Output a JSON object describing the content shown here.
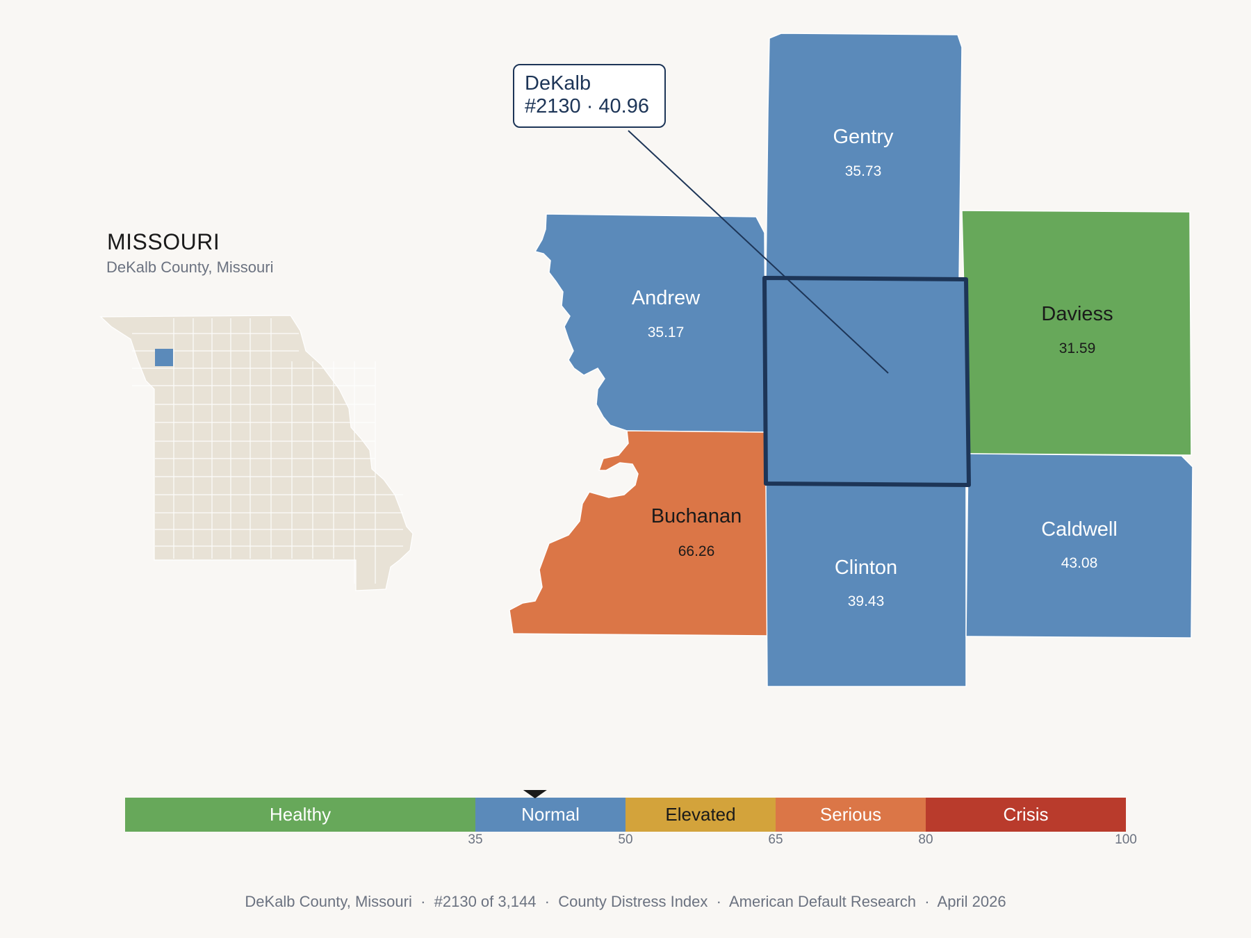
{
  "state": {
    "title": "MISSOURI",
    "subtitle": "DeKalb County, Missouri",
    "fill": "#e8e2d6",
    "highlight": "#5b8aba"
  },
  "callout": {
    "line1": "DeKalb",
    "line2": "#2130 · 40.96"
  },
  "colors": {
    "healthy": "#67a85a",
    "normal": "#5b8aba",
    "elevated": "#d3a33b",
    "serious": "#db7647",
    "crisis": "#b93b2c",
    "outline": "#1d3557"
  },
  "counties": [
    {
      "name": "DeKalb",
      "value": 40.96,
      "category": "normal",
      "selected": true
    },
    {
      "name": "Gentry",
      "value": "35.73",
      "category": "normal"
    },
    {
      "name": "Andrew",
      "value": "35.17",
      "category": "normal"
    },
    {
      "name": "Daviess",
      "value": "31.59",
      "category": "healthy"
    },
    {
      "name": "Buchanan",
      "value": "66.26",
      "category": "serious"
    },
    {
      "name": "Clinton",
      "value": "39.43",
      "category": "normal"
    },
    {
      "name": "Caldwell",
      "value": "43.08",
      "category": "normal"
    }
  ],
  "legend": {
    "bands": [
      {
        "label": "Healthy",
        "min": 0,
        "max": 35,
        "color": "#67a85a"
      },
      {
        "label": "Normal",
        "min": 35,
        "max": 50,
        "color": "#5b8aba"
      },
      {
        "label": "Elevated",
        "min": 50,
        "max": 65,
        "color": "#d3a33b"
      },
      {
        "label": "Serious",
        "min": 65,
        "max": 80,
        "color": "#db7647"
      },
      {
        "label": "Crisis",
        "min": 80,
        "max": 100,
        "color": "#b93b2c"
      }
    ],
    "ticks": [
      "35",
      "50",
      "65",
      "80",
      "100"
    ],
    "marker_value": 40.96
  },
  "footer": "DeKalb County, Missouri  ·  #2130 of 3,144  ·  County Distress Index  ·  American Default Research  ·  April 2026"
}
